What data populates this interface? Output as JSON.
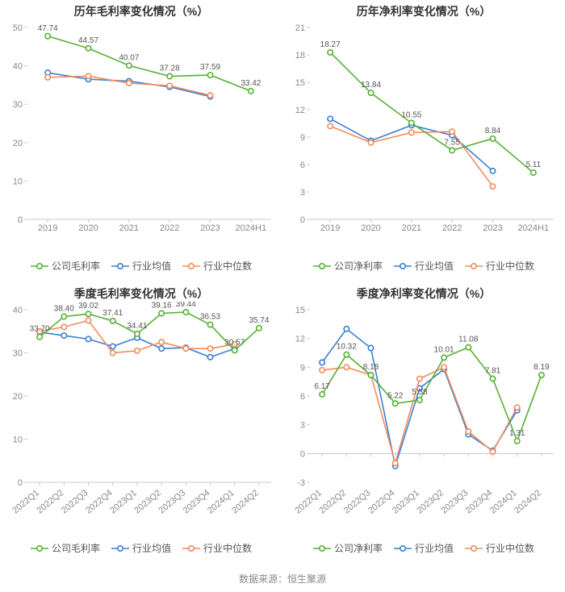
{
  "footer_text": "数据来源：恒生聚源",
  "colors": {
    "company": "#57b135",
    "avg": "#3a7fd5",
    "median": "#f28b5e",
    "axis": "#c8c8c8",
    "tick_label": "#888888",
    "title": "#333333",
    "value_label": "#555555",
    "grid_bg": "#ffffff"
  },
  "fontsize": {
    "title": 14,
    "tick": 11,
    "value_label": 10,
    "legend": 12
  },
  "line_width": 1.6,
  "marker_radius": 3.2,
  "panels": [
    {
      "key": "top_left",
      "title": "历年毛利率变化情况（%）",
      "type": "line",
      "xlabels": [
        "2019",
        "2020",
        "2021",
        "2022",
        "2023",
        "2024H1"
      ],
      "xlabel_rotate": 0,
      "ylim": [
        0,
        50
      ],
      "ytick_step": 10,
      "legend": [
        "公司毛利率",
        "行业均值",
        "行业中位数"
      ],
      "series": [
        {
          "name": "公司毛利率",
          "color_key": "company",
          "values": [
            47.74,
            44.57,
            40.07,
            37.28,
            37.59,
            33.42
          ],
          "labels": [
            "47.74",
            "44.57",
            "40.07",
            "37.28",
            "37.59",
            "33.42"
          ],
          "label_show": [
            true,
            true,
            true,
            true,
            true,
            true
          ]
        },
        {
          "name": "行业均值",
          "color_key": "avg",
          "values": [
            38.2,
            36.5,
            36.0,
            34.5,
            32.0,
            null
          ],
          "labels": [],
          "label_show": []
        },
        {
          "name": "行业中位数",
          "color_key": "median",
          "values": [
            37.0,
            37.3,
            35.5,
            34.8,
            32.3,
            null
          ],
          "labels": [],
          "label_show": []
        }
      ]
    },
    {
      "key": "top_right",
      "title": "历年净利率变化情况（%）",
      "type": "line",
      "xlabels": [
        "2019",
        "2020",
        "2021",
        "2022",
        "2023",
        "2024H1"
      ],
      "xlabel_rotate": 0,
      "ylim": [
        0,
        21
      ],
      "ytick_step": 3,
      "legend": [
        "公司净利率",
        "行业均值",
        "行业中位数"
      ],
      "series": [
        {
          "name": "公司净利率",
          "color_key": "company",
          "values": [
            18.27,
            13.84,
            10.55,
            7.55,
            8.84,
            5.11
          ],
          "labels": [
            "18.27",
            "13.84",
            "10.55",
            "7.55",
            "8.84",
            "5.11"
          ],
          "label_show": [
            true,
            true,
            true,
            true,
            true,
            true
          ]
        },
        {
          "name": "行业均值",
          "color_key": "avg",
          "values": [
            11.0,
            8.6,
            10.3,
            9.2,
            5.3,
            null
          ],
          "labels": [],
          "label_show": []
        },
        {
          "name": "行业中位数",
          "color_key": "median",
          "values": [
            10.2,
            8.4,
            9.5,
            9.6,
            3.6,
            null
          ],
          "labels": [],
          "label_show": []
        }
      ]
    },
    {
      "key": "bottom_left",
      "title": "季度毛利率变化情况（%）",
      "type": "line",
      "xlabels": [
        "2022Q1",
        "2022Q2",
        "2022Q3",
        "2022Q4",
        "2023Q1",
        "2023Q2",
        "2023Q3",
        "2023Q4",
        "2024Q1",
        "2024Q2"
      ],
      "xlabel_rotate": -40,
      "ylim": [
        0,
        40
      ],
      "ytick_step": 10,
      "legend": [
        "公司毛利率",
        "行业均值",
        "行业中位数"
      ],
      "series": [
        {
          "name": "公司毛利率",
          "color_key": "company",
          "values": [
            33.7,
            38.4,
            39.02,
            37.41,
            34.41,
            39.16,
            39.44,
            36.53,
            30.57,
            35.74
          ],
          "labels": [
            "33.70",
            "38.40",
            "39.02",
            "37.41",
            "34.41",
            "39.16",
            "39.44",
            "36.53",
            "30.57",
            "35.74"
          ],
          "label_show": [
            true,
            true,
            true,
            true,
            true,
            true,
            true,
            true,
            true,
            true
          ]
        },
        {
          "name": "行业均值",
          "color_key": "avg",
          "values": [
            34.8,
            34.0,
            33.2,
            31.5,
            33.5,
            31.0,
            31.2,
            29.0,
            31.0,
            null
          ],
          "labels": [],
          "label_show": []
        },
        {
          "name": "行业中位数",
          "color_key": "median",
          "values": [
            35.0,
            36.0,
            37.5,
            30.0,
            30.5,
            32.5,
            31.0,
            31.0,
            32.0,
            null
          ],
          "labels": [],
          "label_show": []
        }
      ]
    },
    {
      "key": "bottom_right",
      "title": "季度净利率变化情况（%）",
      "type": "line",
      "xlabels": [
        "2022Q1",
        "2022Q2",
        "2022Q3",
        "2022Q4",
        "2023Q1",
        "2023Q2",
        "2023Q3",
        "2023Q4",
        "2024Q1",
        "2024Q2"
      ],
      "xlabel_rotate": -40,
      "ylim": [
        -3,
        15
      ],
      "ytick_step": 3,
      "legend": [
        "公司净利率",
        "行业均值",
        "行业中位数"
      ],
      "series": [
        {
          "name": "公司净利率",
          "color_key": "company",
          "values": [
            6.17,
            10.32,
            8.18,
            5.22,
            5.58,
            10.01,
            11.08,
            7.81,
            1.31,
            8.19
          ],
          "labels": [
            "6.17",
            "10.32",
            "8.18",
            "5.22",
            "5.58",
            "10.01",
            "11.08",
            "7.81",
            "1.31",
            "8.19"
          ],
          "label_show": [
            true,
            true,
            true,
            true,
            true,
            true,
            true,
            true,
            true,
            true
          ]
        },
        {
          "name": "行业均值",
          "color_key": "avg",
          "values": [
            9.5,
            13.0,
            11.0,
            -1.3,
            6.8,
            8.8,
            2.0,
            0.3,
            4.5,
            null
          ],
          "labels": [],
          "label_show": []
        },
        {
          "name": "行业中位数",
          "color_key": "median",
          "values": [
            8.7,
            9.0,
            8.2,
            -1.0,
            7.8,
            9.0,
            2.3,
            0.2,
            4.8,
            null
          ],
          "labels": [],
          "label_show": []
        }
      ]
    }
  ]
}
